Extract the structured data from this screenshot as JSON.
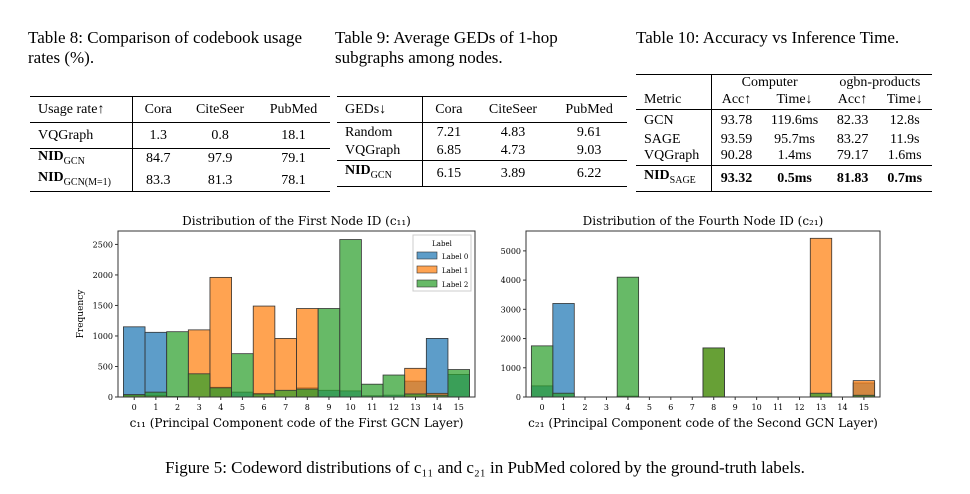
{
  "table8": {
    "caption": "Table 8:  Comparison of codebook usage rates (%).",
    "headers": [
      "Usage rate↑",
      "Cora",
      "CiteSeer",
      "PubMed"
    ],
    "rows": [
      [
        "VQGraph",
        "1.3",
        "0.8",
        "18.1"
      ],
      [
        "NID",
        "84.7",
        "97.9",
        "79.1"
      ],
      [
        "NID",
        "83.3",
        "81.3",
        "78.1"
      ]
    ],
    "subs": [
      "GCN",
      "GCN(M=1)"
    ]
  },
  "table9": {
    "caption": "Table 9:  Average GEDs of 1-hop subgraphs among nodes.",
    "headers": [
      "GEDs↓",
      "Cora",
      "CiteSeer",
      "PubMed"
    ],
    "rows": [
      [
        "Random",
        "7.21",
        "4.83",
        "9.61"
      ],
      [
        "VQGraph",
        "6.85",
        "4.73",
        "9.03"
      ],
      [
        "NID",
        "6.15",
        "3.89",
        "6.22"
      ]
    ],
    "sub": "GCN"
  },
  "table10": {
    "caption": "Table 10: Accuracy vs Inference Time.",
    "groups": [
      "Computer",
      "ogbn-products"
    ],
    "headers": [
      "Metric",
      "Acc↑",
      "Time↓",
      "Acc↑",
      "Time↓"
    ],
    "rows": [
      [
        "GCN",
        "93.78",
        "119.6ms",
        "82.33",
        "12.8s"
      ],
      [
        "SAGE",
        "93.59",
        "95.7ms",
        "83.27",
        "11.9s"
      ],
      [
        "VQGraph",
        "90.28",
        "1.4ms",
        "79.17",
        "1.6ms"
      ],
      [
        "NID",
        "93.32",
        "0.5ms",
        "81.83",
        "0.7ms"
      ]
    ],
    "sub": "SAGE"
  },
  "figure_caption": "Figure 5: Codeword distributions of c₁₁ and c₂₁ in PubMed colored by the ground-truth labels.",
  "colors": {
    "label0": "#1f77b4",
    "label1": "#ff7f0e",
    "label2": "#2ca02c"
  },
  "chart_data": [
    {
      "type": "bar",
      "title": "Distribution of the First Node ID (c₁₁)",
      "xlabel": "c₁₁ (Principal Component code of the First GCN Layer)",
      "ylabel": "Frequency",
      "categories": [
        "0",
        "1",
        "2",
        "3",
        "4",
        "5",
        "6",
        "7",
        "8",
        "9",
        "10",
        "11",
        "12",
        "13",
        "14",
        "15"
      ],
      "yticks": [
        0,
        500,
        1000,
        1500,
        2000,
        2500
      ],
      "ylim": [
        0,
        2720
      ],
      "legend": {
        "title": "Label",
        "position": "top-right",
        "entries": [
          "Label 0",
          "Label 1",
          "Label 2"
        ]
      },
      "series": [
        {
          "name": "Label 0",
          "values": [
            1150,
            1060,
            10,
            0,
            160,
            80,
            60,
            0,
            150,
            110,
            100,
            20,
            30,
            260,
            960,
            370
          ]
        },
        {
          "name": "Label 1",
          "values": [
            30,
            20,
            0,
            1100,
            1960,
            0,
            1490,
            960,
            1450,
            0,
            0,
            0,
            0,
            470,
            60,
            0
          ]
        },
        {
          "name": "Label 2",
          "values": [
            40,
            80,
            1070,
            380,
            150,
            710,
            50,
            110,
            130,
            1450,
            2580,
            210,
            360,
            50,
            30,
            450
          ]
        }
      ]
    },
    {
      "type": "bar",
      "title": "Distribution of the Fourth Node ID (c₂₁)",
      "xlabel": "c₂₁ (Principal Component code of the Second GCN Layer)",
      "ylabel": "",
      "categories": [
        "0",
        "1",
        "2",
        "3",
        "4",
        "5",
        "6",
        "7",
        "8",
        "9",
        "10",
        "11",
        "12",
        "13",
        "14",
        "15"
      ],
      "yticks": [
        0,
        1000,
        2000,
        3000,
        4000,
        5000
      ],
      "ylim": [
        0,
        5680
      ],
      "series": [
        {
          "name": "Label 0",
          "values": [
            380,
            3200,
            0,
            0,
            30,
            0,
            0,
            0,
            0,
            0,
            0,
            0,
            0,
            0,
            0,
            480
          ]
        },
        {
          "name": "Label 1",
          "values": [
            0,
            0,
            0,
            0,
            0,
            0,
            0,
            0,
            1680,
            0,
            0,
            0,
            0,
            5430,
            0,
            560
          ]
        },
        {
          "name": "Label 2",
          "values": [
            1750,
            130,
            0,
            0,
            4100,
            0,
            0,
            0,
            1680,
            0,
            0,
            0,
            0,
            130,
            0,
            60
          ]
        }
      ]
    }
  ]
}
